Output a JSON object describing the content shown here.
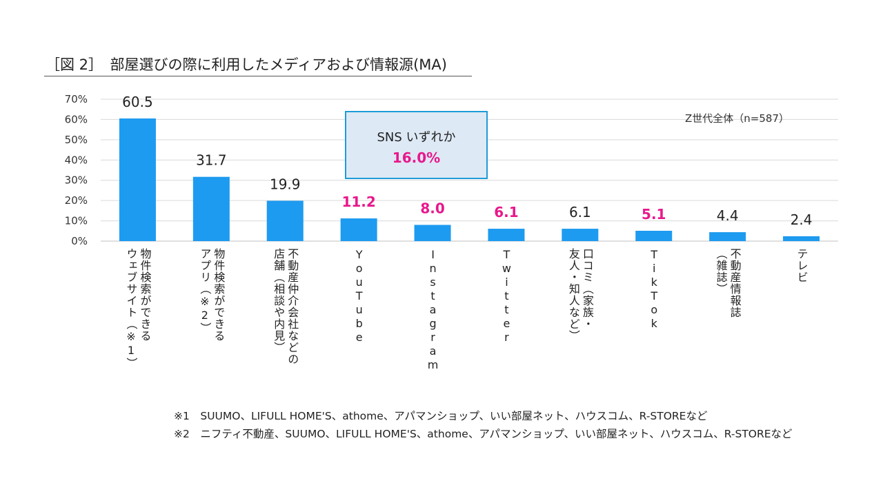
{
  "title": "［図 2］　部屋選びの際に利用したメディアおよび情報源(MA)",
  "sample_note": "Z世代全体（n=587）",
  "sns_callout": {
    "label": "SNS いずれか",
    "value": "16.0%"
  },
  "colors": {
    "bar": "#1d9bf0",
    "highlight": "#e8188c",
    "gridline": "#d9d9d9",
    "callout_border": "#1e9bd7",
    "callout_fill": "#dde9f5"
  },
  "chart_data": {
    "type": "bar",
    "title": "部屋選びの際に利用したメディアおよび情報源(MA)",
    "ylim": [
      0,
      70
    ],
    "yticks": [
      "0%",
      "10%",
      "20%",
      "30%",
      "40%",
      "50%",
      "60%",
      "70%"
    ],
    "grid": true,
    "categories": [
      "物件検索ができるウェブサイト（※1）",
      "物件検索ができるアプリ（※2）",
      "不動産仲介会社などの店舗（相談や内見）",
      "YouTube",
      "Instagram",
      "Twitter",
      "口コミ（家族・友人・知人など）",
      "TikTok",
      "不動産情報誌（雑誌）",
      "テレビ"
    ],
    "values": [
      60.5,
      31.7,
      19.9,
      11.2,
      8.0,
      6.1,
      6.1,
      5.1,
      4.4,
      2.4
    ],
    "value_labels": [
      "60.5",
      "31.7",
      "19.9",
      "11.2",
      "8.0",
      "6.1",
      "6.1",
      "5.1",
      "4.4",
      "2.4"
    ],
    "highlighted": [
      false,
      false,
      false,
      true,
      true,
      true,
      false,
      true,
      false,
      false
    ]
  },
  "category_label_lines": [
    [
      "物件検索ができる",
      "ウェブサイト（※1）"
    ],
    [
      "物件検索ができる",
      "アプリ（※2）"
    ],
    [
      "不動産仲介会社などの",
      "店舗（相談や内見）"
    ],
    [
      "YouTube"
    ],
    [
      "Instagram"
    ],
    [
      "Twitter"
    ],
    [
      "口コミ（家族・",
      "友人・知人など）"
    ],
    [
      "TikTok"
    ],
    [
      "不動産情報誌",
      "（雑誌）"
    ],
    [
      "テレビ"
    ]
  ],
  "footnotes": [
    "※1　SUUMO、LIFULL HOME'S、athome、アパマンショップ、いい部屋ネット、ハウスコム、R-STOREなど",
    "※2　ニフティ不動産、SUUMO、LIFULL HOME'S、athome、アパマンショップ、いい部屋ネット、ハウスコム、R-STOREなど"
  ]
}
